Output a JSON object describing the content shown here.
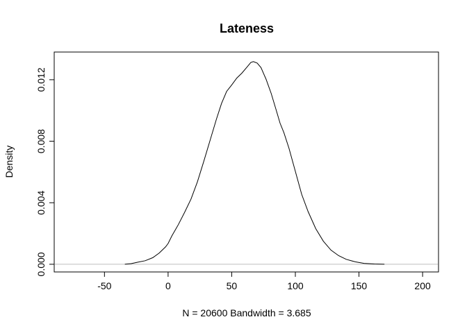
{
  "chart_data": {
    "type": "line",
    "title": "Lateness",
    "xlabel": "N = 20600   Bandwidth = 3.685",
    "ylabel": "Density",
    "xlim": [
      -89.5,
      212.5
    ],
    "ylim": [
      -0.0005,
      0.0138
    ],
    "x_ticks": [
      -50,
      0,
      50,
      100,
      150,
      200
    ],
    "y_ticks": [
      0.0,
      0.004,
      0.008,
      0.012
    ],
    "x_tick_labels": [
      "-50",
      "0",
      "50",
      "100",
      "150",
      "200"
    ],
    "y_tick_labels": [
      "0.000",
      "0.004",
      "0.008",
      "0.012"
    ],
    "grid": false,
    "baseline": 0,
    "colors": {
      "line": "#000000",
      "baseline": "#bebebe",
      "box": "#000000"
    },
    "series": [
      {
        "x": [
          -34,
          -29,
          -24,
          -18,
          -12,
          -7,
          -2,
          0,
          3,
          8,
          13,
          18,
          23,
          28,
          33,
          38,
          42,
          46,
          50,
          54,
          58,
          62,
          65,
          67,
          70,
          73,
          77,
          81,
          85,
          88,
          91,
          95,
          100,
          105,
          110,
          116,
          122,
          128,
          134,
          140,
          147,
          154,
          162,
          170
        ],
        "y": [
          0.0,
          4e-05,
          0.00013,
          0.00023,
          0.00043,
          0.00073,
          0.00113,
          0.00135,
          0.00185,
          0.00257,
          0.00338,
          0.00424,
          0.00535,
          0.00668,
          0.00806,
          0.00944,
          0.01046,
          0.01124,
          0.01166,
          0.01211,
          0.01243,
          0.01282,
          0.01312,
          0.01318,
          0.01308,
          0.01279,
          0.01203,
          0.01111,
          0.01001,
          0.00917,
          0.00856,
          0.00754,
          0.00604,
          0.00454,
          0.00343,
          0.00232,
          0.0015,
          0.00092,
          0.00056,
          0.00032,
          0.00016,
          6e-05,
          2e-05,
          0.0
        ]
      }
    ]
  }
}
